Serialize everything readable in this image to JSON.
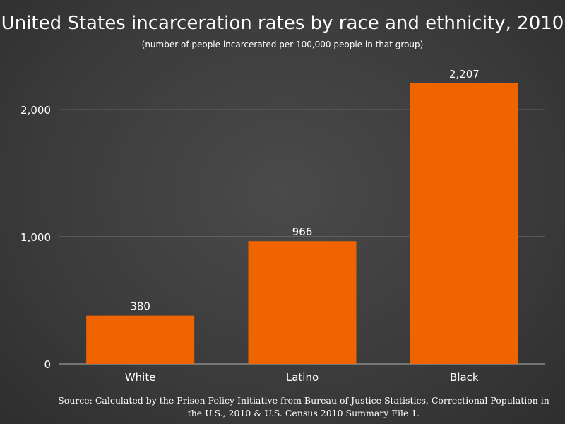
{
  "colors": {
    "bar": "#f06400",
    "grid": "#8a8a8a",
    "text": "#ffffff"
  },
  "chart_data": {
    "type": "bar",
    "title": "United States incarceration rates by race and ethnicity, 2010",
    "subtitle": "(number of people incarcerated per 100,000 people in that group)",
    "categories": [
      "White",
      "Latino",
      "Black"
    ],
    "values": [
      380,
      966,
      2207
    ],
    "value_labels": [
      "380",
      "966",
      "2,207"
    ],
    "yticks": [
      0,
      1000,
      2000
    ],
    "ytick_labels": [
      "0",
      "1,000",
      "2,000"
    ],
    "ylim": [
      0,
      2207
    ],
    "xlabel": "",
    "ylabel": "",
    "grid": true,
    "legend": "none"
  },
  "source": {
    "line1": "Source: Calculated by the Prison Policy Initiative from Bureau of Justice Statistics, Correctional Population in",
    "line2": "the U.S., 2010 & U.S. Census 2010 Summary File 1."
  }
}
